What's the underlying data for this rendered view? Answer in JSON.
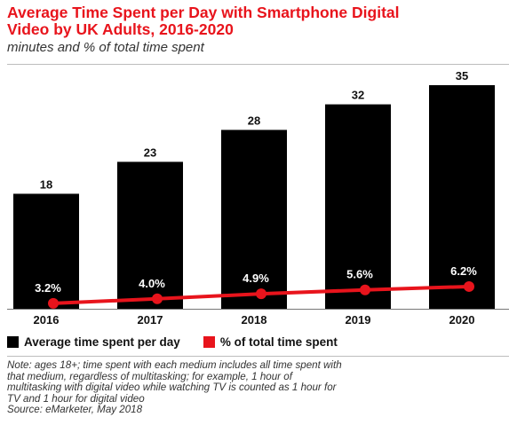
{
  "chart_data": {
    "type": "bar",
    "title_lines": [
      "Average Time Spent per Day with Smartphone Digital",
      "Video by UK Adults, 2016-2020"
    ],
    "subtitle": "minutes and % of total time spent",
    "categories": [
      "2016",
      "2017",
      "2018",
      "2019",
      "2020"
    ],
    "series": [
      {
        "name": "Average time spent per day",
        "chart": "bar",
        "values": [
          18,
          23,
          28,
          32,
          35
        ],
        "labels": [
          "18",
          "23",
          "28",
          "32",
          "35"
        ],
        "color": "#000000"
      },
      {
        "name": "% of total time spent",
        "chart": "line",
        "values": [
          3.2,
          4.0,
          4.9,
          5.6,
          6.2
        ],
        "labels": [
          "3.2%",
          "4.0%",
          "4.9%",
          "5.6%",
          "6.2%"
        ],
        "color": "#e8141c"
      }
    ],
    "ylim": [
      0,
      35
    ],
    "grid": false,
    "legend": "bottom-left"
  },
  "note_lines": [
    "Note: ages 18+; time spent with each medium includes all time spent with",
    "that medium, regardless of multitasking; for example, 1 hour of",
    "multitasking with digital video while watching TV is counted as 1 hour for",
    "TV and 1 hour for digital video",
    "Source: eMarketer, May 2018"
  ],
  "colors": {
    "title": "#e8141c",
    "bar": "#000000",
    "line": "#e8141c"
  }
}
